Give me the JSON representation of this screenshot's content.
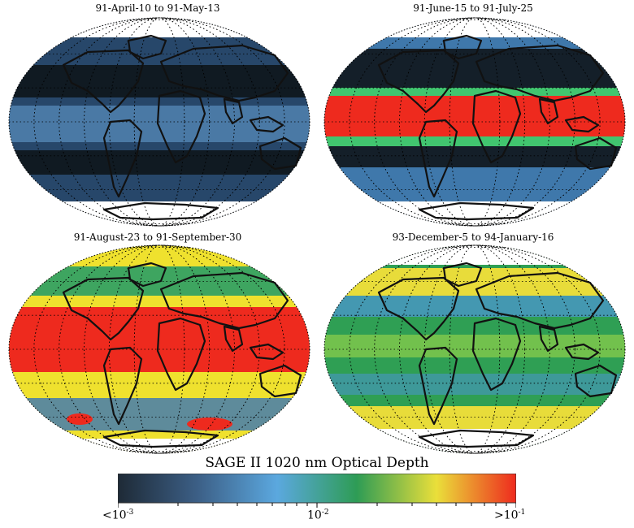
{
  "panels": [
    {
      "title": "91-April-10 to 91-May-13",
      "colors": {
        "base": "#27476a",
        "band": "#101a22",
        "band2": "#5a8fbf",
        "accent": "#1d3a55"
      }
    },
    {
      "title": "91-June-15 to 91-July-25",
      "colors": {
        "base": "#3f78ab",
        "band": "#ee2a1e",
        "band2": "#141f29",
        "accent": "#41c56f"
      }
    },
    {
      "title": "91-August-23 to 91-September-30",
      "colors": {
        "base": "#efe12e",
        "band": "#ee2a1e",
        "band2": "#3ea560",
        "accent": "#3a75b7"
      }
    },
    {
      "title": "93-December-5 to 94-January-16",
      "colors": {
        "base": "#2f9f54",
        "band": "#e8dc3a",
        "band2": "#4a96c8",
        "accent": "#8fd04a"
      }
    }
  ],
  "colorbar": {
    "title": "SAGE II 1020 nm Optical Depth",
    "min_label": "<10",
    "min_exp": "-3",
    "mid_label": "10",
    "mid_exp": "-2",
    "max_label": ">10",
    "max_exp": "-1",
    "stops": [
      "#1e2a36",
      "#3c5f86",
      "#5ba8df",
      "#2e9c55",
      "#eadf3a",
      "#ee2a1e"
    ]
  }
}
